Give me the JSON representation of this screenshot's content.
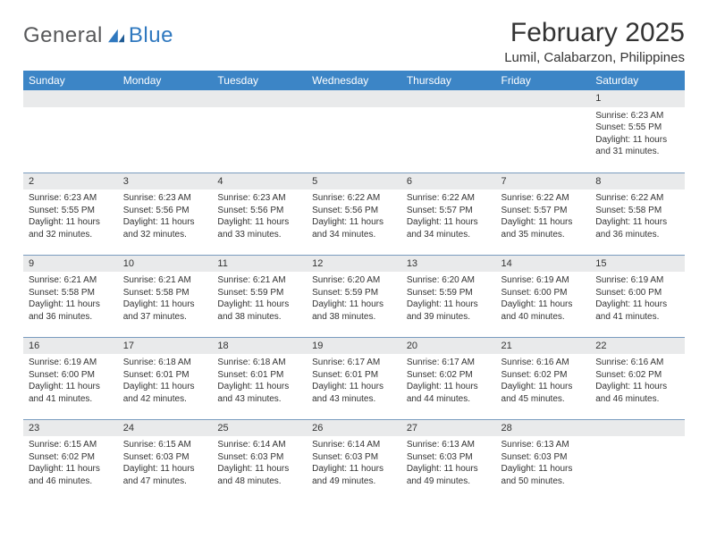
{
  "logo": {
    "text_dark": "General",
    "text_blue": "Blue"
  },
  "title": "February 2025",
  "location": "Lumil, Calabarzon, Philippines",
  "colors": {
    "header_bg": "#3c85c6",
    "header_text": "#ffffff",
    "daynum_bg": "#e9eaeb",
    "rule": "#7a9cbf",
    "text": "#333333",
    "logo_dark": "#57585a",
    "logo_blue": "#2f78bf"
  },
  "day_names": [
    "Sunday",
    "Monday",
    "Tuesday",
    "Wednesday",
    "Thursday",
    "Friday",
    "Saturday"
  ],
  "weeks": [
    [
      {
        "n": "",
        "sr": "",
        "ss": "",
        "dl": ""
      },
      {
        "n": "",
        "sr": "",
        "ss": "",
        "dl": ""
      },
      {
        "n": "",
        "sr": "",
        "ss": "",
        "dl": ""
      },
      {
        "n": "",
        "sr": "",
        "ss": "",
        "dl": ""
      },
      {
        "n": "",
        "sr": "",
        "ss": "",
        "dl": ""
      },
      {
        "n": "",
        "sr": "",
        "ss": "",
        "dl": ""
      },
      {
        "n": "1",
        "sr": "Sunrise: 6:23 AM",
        "ss": "Sunset: 5:55 PM",
        "dl": "Daylight: 11 hours and 31 minutes."
      }
    ],
    [
      {
        "n": "2",
        "sr": "Sunrise: 6:23 AM",
        "ss": "Sunset: 5:55 PM",
        "dl": "Daylight: 11 hours and 32 minutes."
      },
      {
        "n": "3",
        "sr": "Sunrise: 6:23 AM",
        "ss": "Sunset: 5:56 PM",
        "dl": "Daylight: 11 hours and 32 minutes."
      },
      {
        "n": "4",
        "sr": "Sunrise: 6:23 AM",
        "ss": "Sunset: 5:56 PM",
        "dl": "Daylight: 11 hours and 33 minutes."
      },
      {
        "n": "5",
        "sr": "Sunrise: 6:22 AM",
        "ss": "Sunset: 5:56 PM",
        "dl": "Daylight: 11 hours and 34 minutes."
      },
      {
        "n": "6",
        "sr": "Sunrise: 6:22 AM",
        "ss": "Sunset: 5:57 PM",
        "dl": "Daylight: 11 hours and 34 minutes."
      },
      {
        "n": "7",
        "sr": "Sunrise: 6:22 AM",
        "ss": "Sunset: 5:57 PM",
        "dl": "Daylight: 11 hours and 35 minutes."
      },
      {
        "n": "8",
        "sr": "Sunrise: 6:22 AM",
        "ss": "Sunset: 5:58 PM",
        "dl": "Daylight: 11 hours and 36 minutes."
      }
    ],
    [
      {
        "n": "9",
        "sr": "Sunrise: 6:21 AM",
        "ss": "Sunset: 5:58 PM",
        "dl": "Daylight: 11 hours and 36 minutes."
      },
      {
        "n": "10",
        "sr": "Sunrise: 6:21 AM",
        "ss": "Sunset: 5:58 PM",
        "dl": "Daylight: 11 hours and 37 minutes."
      },
      {
        "n": "11",
        "sr": "Sunrise: 6:21 AM",
        "ss": "Sunset: 5:59 PM",
        "dl": "Daylight: 11 hours and 38 minutes."
      },
      {
        "n": "12",
        "sr": "Sunrise: 6:20 AM",
        "ss": "Sunset: 5:59 PM",
        "dl": "Daylight: 11 hours and 38 minutes."
      },
      {
        "n": "13",
        "sr": "Sunrise: 6:20 AM",
        "ss": "Sunset: 5:59 PM",
        "dl": "Daylight: 11 hours and 39 minutes."
      },
      {
        "n": "14",
        "sr": "Sunrise: 6:19 AM",
        "ss": "Sunset: 6:00 PM",
        "dl": "Daylight: 11 hours and 40 minutes."
      },
      {
        "n": "15",
        "sr": "Sunrise: 6:19 AM",
        "ss": "Sunset: 6:00 PM",
        "dl": "Daylight: 11 hours and 41 minutes."
      }
    ],
    [
      {
        "n": "16",
        "sr": "Sunrise: 6:19 AM",
        "ss": "Sunset: 6:00 PM",
        "dl": "Daylight: 11 hours and 41 minutes."
      },
      {
        "n": "17",
        "sr": "Sunrise: 6:18 AM",
        "ss": "Sunset: 6:01 PM",
        "dl": "Daylight: 11 hours and 42 minutes."
      },
      {
        "n": "18",
        "sr": "Sunrise: 6:18 AM",
        "ss": "Sunset: 6:01 PM",
        "dl": "Daylight: 11 hours and 43 minutes."
      },
      {
        "n": "19",
        "sr": "Sunrise: 6:17 AM",
        "ss": "Sunset: 6:01 PM",
        "dl": "Daylight: 11 hours and 43 minutes."
      },
      {
        "n": "20",
        "sr": "Sunrise: 6:17 AM",
        "ss": "Sunset: 6:02 PM",
        "dl": "Daylight: 11 hours and 44 minutes."
      },
      {
        "n": "21",
        "sr": "Sunrise: 6:16 AM",
        "ss": "Sunset: 6:02 PM",
        "dl": "Daylight: 11 hours and 45 minutes."
      },
      {
        "n": "22",
        "sr": "Sunrise: 6:16 AM",
        "ss": "Sunset: 6:02 PM",
        "dl": "Daylight: 11 hours and 46 minutes."
      }
    ],
    [
      {
        "n": "23",
        "sr": "Sunrise: 6:15 AM",
        "ss": "Sunset: 6:02 PM",
        "dl": "Daylight: 11 hours and 46 minutes."
      },
      {
        "n": "24",
        "sr": "Sunrise: 6:15 AM",
        "ss": "Sunset: 6:03 PM",
        "dl": "Daylight: 11 hours and 47 minutes."
      },
      {
        "n": "25",
        "sr": "Sunrise: 6:14 AM",
        "ss": "Sunset: 6:03 PM",
        "dl": "Daylight: 11 hours and 48 minutes."
      },
      {
        "n": "26",
        "sr": "Sunrise: 6:14 AM",
        "ss": "Sunset: 6:03 PM",
        "dl": "Daylight: 11 hours and 49 minutes."
      },
      {
        "n": "27",
        "sr": "Sunrise: 6:13 AM",
        "ss": "Sunset: 6:03 PM",
        "dl": "Daylight: 11 hours and 49 minutes."
      },
      {
        "n": "28",
        "sr": "Sunrise: 6:13 AM",
        "ss": "Sunset: 6:03 PM",
        "dl": "Daylight: 11 hours and 50 minutes."
      },
      {
        "n": "",
        "sr": "",
        "ss": "",
        "dl": ""
      }
    ]
  ]
}
